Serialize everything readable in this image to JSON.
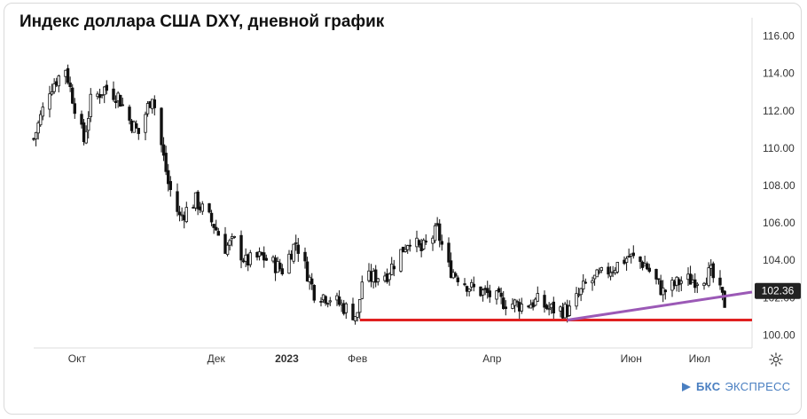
{
  "title": "Индекс доллара США DXY, дневной график",
  "brand": {
    "name_bold": "БКС",
    "name_rest": "ЭКСПРЕСС"
  },
  "colors": {
    "candle": "#111111",
    "support_line": "#e02020",
    "trend_line": "#9b59b6",
    "axis_text": "#333333",
    "grid": "#e6e6e6",
    "price_label_bg": "#222222",
    "brand": "#4a7fc1"
  },
  "icons": {
    "settings": "gear-icon",
    "brand": "bks-logo-icon"
  },
  "chart_data": {
    "type": "candlestick",
    "title": "Индекс доллара США DXY, дневной график",
    "x_range": [
      "2022-09-12",
      "2023-07-24"
    ],
    "y_range": [
      99.4,
      116.6
    ],
    "y_ticks": [
      100.0,
      102.0,
      104.0,
      106.0,
      108.0,
      110.0,
      112.0,
      114.0,
      116.0
    ],
    "y_tick_labels": [
      "100.00",
      "102.00",
      "104.00",
      "106.00",
      "108.00",
      "110.00",
      "112.00",
      "114.00",
      "116.00"
    ],
    "x_ticks": [
      {
        "date": "2022-10-01",
        "label": "Окт"
      },
      {
        "date": "2022-12-01",
        "label": "Дек"
      },
      {
        "date": "2023-01-01",
        "label": "2023"
      },
      {
        "date": "2023-02-01",
        "label": "Фев"
      },
      {
        "date": "2023-04-01",
        "label": "Апр"
      },
      {
        "date": "2023-06-01",
        "label": "Июн"
      },
      {
        "date": "2023-07-01",
        "label": "Июл"
      }
    ],
    "last_price": 102.36,
    "last_price_label": "102.36",
    "grid": false,
    "close_path": [
      [
        "2022-09-12",
        110.5
      ],
      [
        "2022-09-19",
        113.2
      ],
      [
        "2022-09-26",
        114.3
      ],
      [
        "2022-09-28",
        113.2
      ],
      [
        "2022-10-04",
        110.4
      ],
      [
        "2022-10-07",
        112.5
      ],
      [
        "2022-10-13",
        113.2
      ],
      [
        "2022-10-19",
        112.8
      ],
      [
        "2022-10-24",
        111.5
      ],
      [
        "2022-10-28",
        110.8
      ],
      [
        "2022-11-03",
        112.9
      ],
      [
        "2022-11-10",
        108.1
      ],
      [
        "2022-11-15",
        106.3
      ],
      [
        "2022-11-22",
        107.2
      ],
      [
        "2022-11-30",
        105.9
      ],
      [
        "2022-12-05",
        104.7
      ],
      [
        "2022-12-09",
        105.0
      ],
      [
        "2022-12-14",
        103.9
      ],
      [
        "2022-12-21",
        104.2
      ],
      [
        "2022-12-30",
        103.5
      ],
      [
        "2023-01-05",
        105.0
      ],
      [
        "2023-01-13",
        102.3
      ],
      [
        "2023-01-20",
        102.0
      ],
      [
        "2023-02-01",
        101.0
      ],
      [
        "2023-02-03",
        102.9
      ],
      [
        "2023-02-14",
        103.3
      ],
      [
        "2023-02-24",
        105.2
      ],
      [
        "2023-03-01",
        104.5
      ],
      [
        "2023-03-08",
        105.6
      ],
      [
        "2023-03-13",
        103.6
      ],
      [
        "2023-03-23",
        102.5
      ],
      [
        "2023-03-30",
        102.2
      ],
      [
        "2023-04-05",
        101.8
      ],
      [
        "2023-04-14",
        101.6
      ],
      [
        "2023-04-21",
        101.8
      ],
      [
        "2023-04-26",
        101.4
      ],
      [
        "2023-05-05",
        101.3
      ],
      [
        "2023-05-12",
        102.7
      ],
      [
        "2023-05-19",
        103.2
      ],
      [
        "2023-05-31",
        104.2
      ],
      [
        "2023-06-07",
        103.8
      ],
      [
        "2023-06-15",
        102.3
      ],
      [
        "2023-06-23",
        102.9
      ],
      [
        "2023-06-30",
        103.0
      ],
      [
        "2023-07-06",
        103.3
      ],
      [
        "2023-07-12",
        101.7
      ]
    ],
    "support_line": {
      "x": [
        "2023-02-02",
        "2023-07-24"
      ],
      "y": [
        100.8,
        100.8
      ]
    },
    "trend_line": {
      "x": [
        "2023-05-04",
        "2023-07-24"
      ],
      "y": [
        100.8,
        102.3
      ]
    }
  },
  "settings_label": ""
}
